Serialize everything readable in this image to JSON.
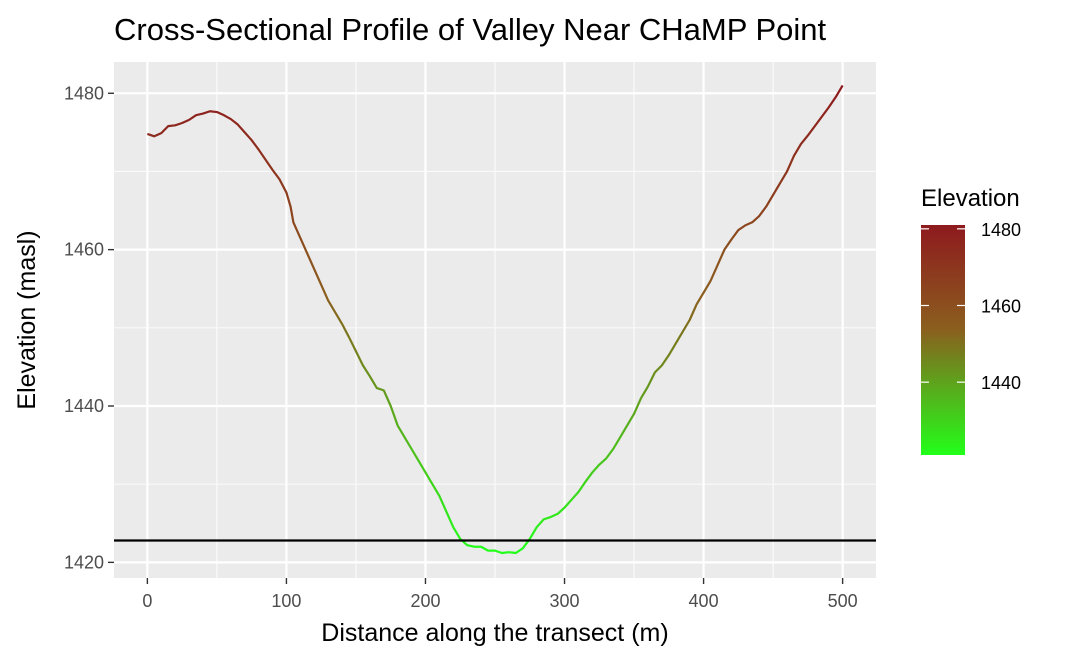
{
  "chart_data": {
    "type": "line",
    "title": "Cross-Sectional Profile of Valley Near CHaMP Point",
    "xlabel": "Distance along the transect (m)",
    "ylabel": "Elevation (masl)",
    "xlim": [
      -24,
      524
    ],
    "ylim": [
      1418,
      1484
    ],
    "x_ticks": [
      0,
      100,
      200,
      300,
      400,
      500
    ],
    "y_ticks": [
      1420,
      1440,
      1460,
      1480
    ],
    "x_tick_labels": [
      "0",
      "100",
      "200",
      "300",
      "400",
      "500"
    ],
    "y_tick_labels": [
      "1420",
      "1440",
      "1460",
      "1480"
    ],
    "grid": true,
    "reference_line": {
      "orientation": "horizontal",
      "y": 1422.8,
      "color": "#000000"
    },
    "legend": {
      "title": "Elevation",
      "type": "colorbar",
      "position": "right",
      "range": [
        1421,
        1481
      ],
      "ticks": [
        1440,
        1460,
        1480
      ],
      "tick_labels": [
        "1440",
        "1460",
        "1480"
      ],
      "color_low": "#22ff1a",
      "color_mid": "#8b5e1e",
      "color_high": "#8e1a1e"
    },
    "series": [
      {
        "points": [
          [
            0,
            1474.8
          ],
          [
            5,
            1474.5
          ],
          [
            10,
            1474.9
          ],
          [
            15,
            1475.8
          ],
          [
            20,
            1475.9
          ],
          [
            25,
            1476.2
          ],
          [
            30,
            1476.6
          ],
          [
            35,
            1477.2
          ],
          [
            40,
            1477.4
          ],
          [
            45,
            1477.7
          ],
          [
            50,
            1477.6
          ],
          [
            55,
            1477.2
          ],
          [
            60,
            1476.7
          ],
          [
            65,
            1476.0
          ],
          [
            70,
            1475.0
          ],
          [
            75,
            1474.0
          ],
          [
            80,
            1472.8
          ],
          [
            85,
            1471.5
          ],
          [
            90,
            1470.2
          ],
          [
            95,
            1469.0
          ],
          [
            100,
            1467.3
          ],
          [
            103,
            1465.5
          ],
          [
            105,
            1463.5
          ],
          [
            110,
            1461.5
          ],
          [
            115,
            1459.5
          ],
          [
            120,
            1457.5
          ],
          [
            125,
            1455.5
          ],
          [
            130,
            1453.5
          ],
          [
            135,
            1452.0
          ],
          [
            140,
            1450.5
          ],
          [
            145,
            1448.8
          ],
          [
            150,
            1447.0
          ],
          [
            155,
            1445.2
          ],
          [
            160,
            1443.8
          ],
          [
            165,
            1442.3
          ],
          [
            170,
            1442.0
          ],
          [
            175,
            1440.0
          ],
          [
            180,
            1437.5
          ],
          [
            185,
            1436.0
          ],
          [
            190,
            1434.5
          ],
          [
            195,
            1433.0
          ],
          [
            200,
            1431.5
          ],
          [
            205,
            1430.0
          ],
          [
            210,
            1428.5
          ],
          [
            215,
            1426.5
          ],
          [
            220,
            1424.5
          ],
          [
            225,
            1423.0
          ],
          [
            230,
            1422.2
          ],
          [
            235,
            1422.0
          ],
          [
            240,
            1422.0
          ],
          [
            245,
            1421.5
          ],
          [
            250,
            1421.5
          ],
          [
            255,
            1421.2
          ],
          [
            260,
            1421.3
          ],
          [
            265,
            1421.2
          ],
          [
            270,
            1421.8
          ],
          [
            275,
            1423.0
          ],
          [
            280,
            1424.5
          ],
          [
            285,
            1425.5
          ],
          [
            290,
            1425.8
          ],
          [
            295,
            1426.2
          ],
          [
            300,
            1427.0
          ],
          [
            305,
            1428.0
          ],
          [
            310,
            1429.0
          ],
          [
            315,
            1430.3
          ],
          [
            320,
            1431.5
          ],
          [
            325,
            1432.5
          ],
          [
            330,
            1433.3
          ],
          [
            335,
            1434.5
          ],
          [
            340,
            1436.0
          ],
          [
            345,
            1437.5
          ],
          [
            350,
            1439.0
          ],
          [
            355,
            1441.0
          ],
          [
            360,
            1442.5
          ],
          [
            365,
            1444.3
          ],
          [
            370,
            1445.2
          ],
          [
            375,
            1446.5
          ],
          [
            380,
            1448.0
          ],
          [
            385,
            1449.5
          ],
          [
            390,
            1451.0
          ],
          [
            395,
            1453.0
          ],
          [
            400,
            1454.5
          ],
          [
            405,
            1456.0
          ],
          [
            410,
            1458.0
          ],
          [
            415,
            1460.0
          ],
          [
            420,
            1461.3
          ],
          [
            425,
            1462.5
          ],
          [
            430,
            1463.1
          ],
          [
            435,
            1463.5
          ],
          [
            440,
            1464.3
          ],
          [
            445,
            1465.5
          ],
          [
            450,
            1467.0
          ],
          [
            455,
            1468.5
          ],
          [
            460,
            1470.0
          ],
          [
            465,
            1472.0
          ],
          [
            470,
            1473.5
          ],
          [
            475,
            1474.6
          ],
          [
            480,
            1475.8
          ],
          [
            485,
            1477.0
          ],
          [
            490,
            1478.2
          ],
          [
            495,
            1479.5
          ],
          [
            500,
            1481.0
          ]
        ]
      }
    ]
  }
}
